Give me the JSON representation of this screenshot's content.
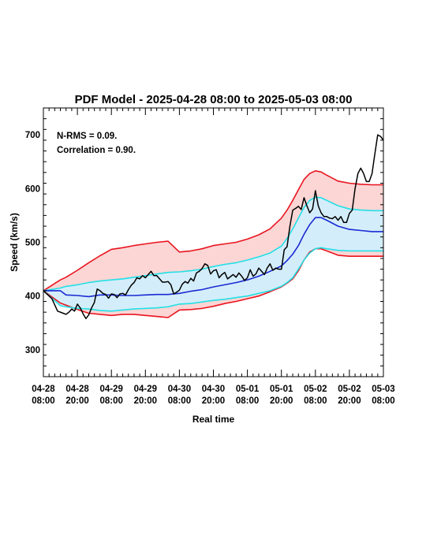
{
  "chart_data": {
    "type": "line",
    "title": "PDF Model - 2025-04-28 08:00 to 2025-05-03 08:00",
    "xlabel": "Real time",
    "ylabel": "Speed (km/s)",
    "x_unit": "hours",
    "xlim": [
      0,
      120
    ],
    "ylim": [
      250,
      750
    ],
    "grid": false,
    "y_ticks": [
      300,
      400,
      500,
      600,
      700
    ],
    "x_ticks": [
      {
        "x": 0,
        "line1": "04-28",
        "line2": "08:00"
      },
      {
        "x": 12,
        "line1": "04-28",
        "line2": "20:00"
      },
      {
        "x": 24,
        "line1": "04-29",
        "line2": "08:00"
      },
      {
        "x": 36,
        "line1": "04-29",
        "line2": "20:00"
      },
      {
        "x": 48,
        "line1": "04-30",
        "line2": "08:00"
      },
      {
        "x": 60,
        "line1": "04-30",
        "line2": "20:00"
      },
      {
        "x": 72,
        "line1": "05-01",
        "line2": "08:00"
      },
      {
        "x": 84,
        "line1": "05-01",
        "line2": "20:00"
      },
      {
        "x": 96,
        "line1": "05-02",
        "line2": "08:00"
      },
      {
        "x": 108,
        "line1": "05-02",
        "line2": "20:00"
      },
      {
        "x": 120,
        "line1": "05-03",
        "line2": "08:00"
      }
    ],
    "annotations": [
      "N-RMS = 0.09.",
      "Correlation = 0.90."
    ],
    "colors": {
      "outer_band_fill": "#fcd5d5",
      "outer_band_line": "#e8141e",
      "inner_band_fill": "#d4edfa",
      "inner_band_line": "#22e0e6",
      "median_line": "#1a2ad4",
      "observed_line": "#000000"
    },
    "series": [
      {
        "x": [
          0,
          6,
          8,
          12,
          16,
          20,
          24,
          28,
          32,
          36,
          40,
          44,
          48,
          52,
          56,
          60,
          64,
          68,
          72,
          76,
          80,
          84,
          86,
          88,
          90,
          92,
          94,
          96,
          98,
          100,
          104,
          108,
          112,
          116,
          120
        ],
        "upper": [
          410,
          430,
          435,
          448,
          462,
          475,
          487,
          490,
          494,
          497,
          500,
          502,
          482,
          484,
          488,
          494,
          497,
          500,
          506,
          514,
          525,
          545,
          560,
          578,
          598,
          617,
          628,
          633,
          631,
          625,
          614,
          610,
          608,
          607,
          607
        ],
        "lower": [
          410,
          387,
          383,
          375,
          368,
          366,
          364,
          366,
          366,
          364,
          362,
          360,
          374,
          375,
          377,
          381,
          386,
          390,
          395,
          400,
          408,
          417,
          424,
          432,
          447,
          467,
          482,
          488,
          488,
          484,
          476,
          474,
          474,
          474,
          474
        ]
      },
      {
        "x": [
          0,
          6,
          8,
          12,
          16,
          20,
          24,
          28,
          32,
          36,
          40,
          44,
          48,
          52,
          56,
          60,
          64,
          68,
          72,
          76,
          80,
          84,
          86,
          88,
          90,
          92,
          94,
          96,
          98,
          100,
          104,
          108,
          112,
          116,
          120
        ],
        "upper": [
          410,
          415,
          418,
          421,
          425,
          428,
          430,
          432,
          435,
          438,
          441,
          444,
          445,
          447,
          450,
          455,
          459,
          462,
          467,
          473,
          480,
          493,
          507,
          525,
          545,
          565,
          578,
          584,
          583,
          578,
          568,
          562,
          560,
          559,
          559
        ],
        "lower": [
          410,
          382,
          380,
          377,
          376,
          373,
          372,
          374,
          376,
          377,
          378,
          380,
          385,
          386,
          389,
          392,
          394,
          397,
          400,
          405,
          410,
          418,
          425,
          434,
          450,
          467,
          480,
          488,
          490,
          488,
          485,
          484,
          484,
          484,
          484
        ]
      },
      {
        "name": "",
        "x": [
          0,
          6,
          8,
          12,
          16,
          20,
          24,
          28,
          32,
          36,
          40,
          44,
          48,
          52,
          56,
          60,
          64,
          68,
          72,
          76,
          80,
          84,
          86,
          88,
          90,
          92,
          94,
          96,
          98,
          100,
          104,
          108,
          112,
          116,
          120
        ],
        "y": [
          410,
          410,
          402,
          401,
          399,
          402,
          402,
          401,
          401,
          402,
          403,
          403,
          405,
          409,
          412,
          417,
          421,
          425,
          430,
          437,
          446,
          456,
          466,
          478,
          494,
          515,
          533,
          546,
          546,
          541,
          530,
          524,
          522,
          520,
          520
        ]
      },
      {
        "name": "",
        "x": [
          0,
          2,
          3,
          5,
          7,
          8,
          9,
          10,
          11,
          12,
          13,
          14,
          15,
          16,
          17,
          18,
          19,
          20,
          21,
          22,
          23,
          24,
          25,
          26,
          27,
          28,
          29,
          30,
          31,
          32,
          33,
          34,
          35,
          36,
          37,
          38,
          39,
          40,
          41,
          42,
          43,
          44,
          45,
          46,
          47,
          48,
          49,
          50,
          51,
          52,
          53,
          54,
          55,
          56,
          57,
          58,
          59,
          60,
          61,
          62,
          63,
          64,
          65,
          66,
          67,
          68,
          69,
          70,
          71,
          72,
          73,
          74,
          75,
          76,
          77,
          78,
          79,
          80,
          81,
          82,
          83,
          84,
          85,
          86,
          87,
          88,
          89,
          90,
          91,
          92,
          93,
          94,
          95,
          96,
          97,
          98,
          99,
          100,
          101,
          102,
          103,
          104,
          105,
          106,
          107,
          108,
          109,
          110,
          111,
          112,
          113,
          114,
          115,
          116,
          117,
          118,
          119,
          120
        ],
        "y": [
          410,
          400,
          395,
          372,
          368,
          366,
          370,
          376,
          372,
          385,
          378,
          367,
          358,
          365,
          378,
          388,
          413,
          410,
          405,
          403,
          396,
          404,
          403,
          397,
          404,
          405,
          402,
          412,
          420,
          425,
          434,
          432,
          438,
          434,
          440,
          446,
          438,
          438,
          432,
          426,
          426,
          427,
          421,
          404,
          407,
          411,
          422,
          427,
          424,
          433,
          428,
          443,
          446,
          451,
          460,
          457,
          441,
          447,
          449,
          434,
          440,
          444,
          432,
          436,
          440,
          435,
          443,
          437,
          429,
          434,
          449,
          437,
          441,
          452,
          446,
          440,
          452,
          460,
          448,
          452,
          450,
          450,
          486,
          492,
          530,
          560,
          563,
          567,
          561,
          583,
          568,
          555,
          562,
          596,
          568,
          555,
          548,
          548,
          545,
          544,
          548,
          541,
          548,
          537,
          537,
          554,
          560,
          600,
          628,
          638,
          628,
          613,
          613,
          628,
          665,
          700,
          697,
          690
        ]
      }
    ]
  }
}
